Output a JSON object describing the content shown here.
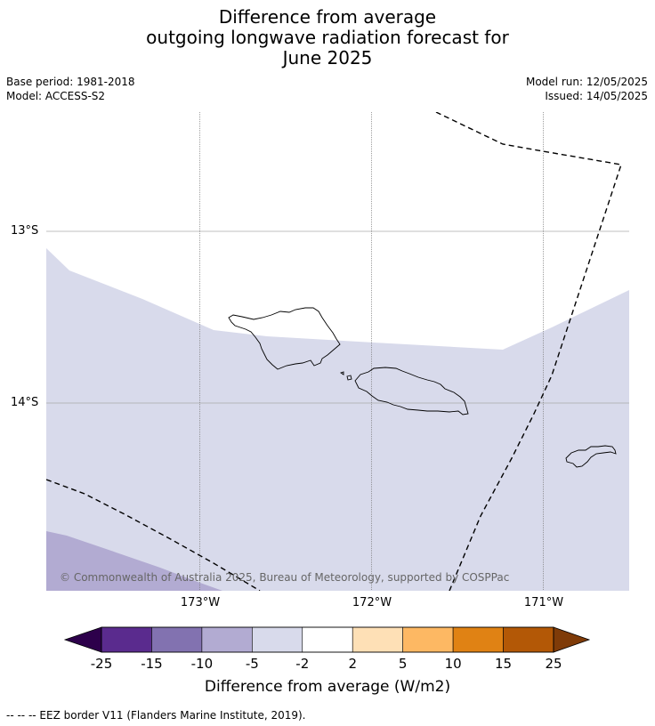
{
  "title": {
    "line1": "Difference from average",
    "line2": "outgoing longwave radiation forecast for",
    "line3": "June 2025"
  },
  "meta": {
    "base_period": "Base period: 1981-2018",
    "model": "Model: ACCESS-S2",
    "model_run": "Model run: 12/05/2025",
    "issued": "Issued: 14/05/2025"
  },
  "map": {
    "lat_labels": [
      "13°S",
      "14°S"
    ],
    "lon_labels": [
      "173°W",
      "172°W",
      "171°W"
    ],
    "land_outline_color": "#000000",
    "eez_line_color": "#000000",
    "copyright": "© Commonwealth of Australia 2025, Bureau of Meteorology, supported by COSPPac"
  },
  "colorbar": {
    "colors": [
      "#2d004b",
      "#5a2b8e",
      "#8272b0",
      "#b2abd2",
      "#d8daeb",
      "#ffffff",
      "#fee0b6",
      "#fdb863",
      "#e08214",
      "#b35806",
      "#7f3b08"
    ],
    "ticks": [
      "-25",
      "-15",
      "-10",
      "-5",
      "-2",
      "2",
      "5",
      "10",
      "15",
      "25"
    ],
    "label": "Difference from average (W/m2)"
  },
  "footer": {
    "legend": "--  --  -- EEZ border V11 (Flanders Marine Institute, 2019)."
  }
}
